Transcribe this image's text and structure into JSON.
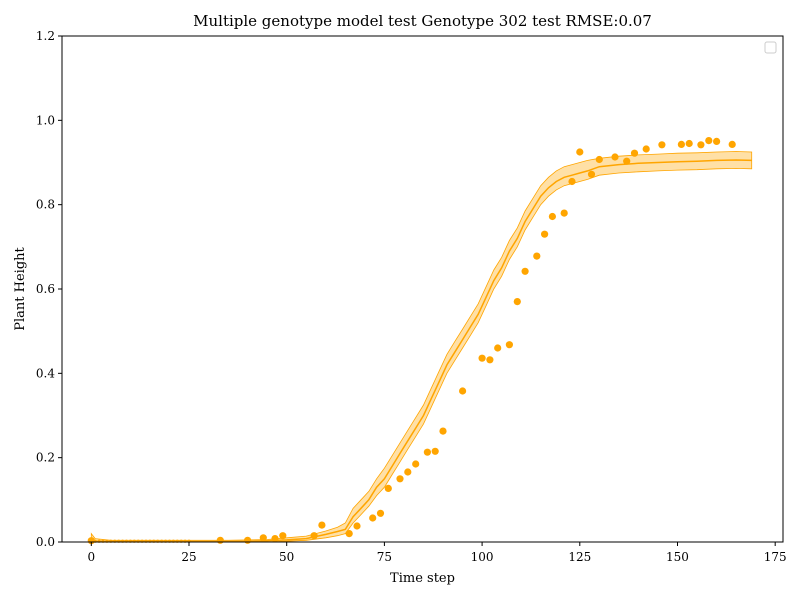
{
  "chart_data": {
    "type": "scatter",
    "title": "Multiple genotype model test Genotype 302 test RMSE:0.07",
    "xlabel": "Time step",
    "ylabel": "Plant Height",
    "xlim": [
      -7.5,
      177
    ],
    "ylim": [
      0,
      1.2
    ],
    "xticks": [
      0,
      25,
      50,
      75,
      100,
      125,
      150,
      175
    ],
    "yticks": [
      0.0,
      0.2,
      0.4,
      0.6,
      0.8,
      1.0,
      1.2
    ],
    "xtick_labels": [
      "0",
      "25",
      "50",
      "75",
      "100",
      "125",
      "150",
      "175"
    ],
    "ytick_labels": [
      "0.0",
      "0.2",
      "0.4",
      "0.6",
      "0.8",
      "1.0",
      "1.2"
    ],
    "grid": false,
    "legend": "top-right",
    "color": "#FFA500",
    "band_color": "#FFA500",
    "series": [
      {
        "type": "line-with-band",
        "x": [
          0,
          1,
          5,
          10,
          15,
          20,
          25,
          30,
          35,
          40,
          45,
          50,
          55,
          60,
          63,
          65,
          67,
          69,
          71,
          73,
          75,
          77,
          79,
          81,
          83,
          85,
          87,
          89,
          91,
          93,
          95,
          97,
          99,
          101,
          103,
          105,
          107,
          109,
          111,
          113,
          115,
          117,
          119,
          121,
          123,
          125,
          127,
          130,
          135,
          140,
          145,
          150,
          155,
          160,
          165,
          169
        ],
        "y": [
          0.003,
          0.002,
          0.001,
          0.001,
          0.001,
          0.001,
          0.001,
          0.001,
          0.001,
          0.002,
          0.003,
          0.005,
          0.008,
          0.018,
          0.025,
          0.03,
          0.06,
          0.08,
          0.1,
          0.13,
          0.15,
          0.18,
          0.21,
          0.24,
          0.27,
          0.3,
          0.34,
          0.38,
          0.42,
          0.45,
          0.48,
          0.51,
          0.54,
          0.58,
          0.62,
          0.65,
          0.69,
          0.72,
          0.76,
          0.79,
          0.82,
          0.84,
          0.855,
          0.865,
          0.87,
          0.875,
          0.88,
          0.89,
          0.895,
          0.898,
          0.9,
          0.902,
          0.903,
          0.905,
          0.906,
          0.905
        ],
        "lower": [
          0.0,
          0.0,
          0.0,
          0.0,
          0.0,
          0.0,
          0.0,
          0.0,
          0.0,
          0.0,
          0.0,
          0.002,
          0.004,
          0.01,
          0.015,
          0.02,
          0.045,
          0.065,
          0.085,
          0.11,
          0.13,
          0.16,
          0.19,
          0.22,
          0.25,
          0.28,
          0.32,
          0.36,
          0.4,
          0.43,
          0.46,
          0.49,
          0.52,
          0.56,
          0.6,
          0.63,
          0.67,
          0.7,
          0.74,
          0.77,
          0.8,
          0.82,
          0.835,
          0.845,
          0.85,
          0.855,
          0.86,
          0.87,
          0.875,
          0.878,
          0.88,
          0.882,
          0.883,
          0.885,
          0.886,
          0.885
        ],
        "upper": [
          0.02,
          0.008,
          0.004,
          0.004,
          0.004,
          0.004,
          0.004,
          0.004,
          0.004,
          0.005,
          0.006,
          0.01,
          0.014,
          0.026,
          0.035,
          0.045,
          0.08,
          0.1,
          0.12,
          0.15,
          0.175,
          0.205,
          0.235,
          0.265,
          0.295,
          0.325,
          0.365,
          0.405,
          0.445,
          0.475,
          0.505,
          0.535,
          0.565,
          0.605,
          0.645,
          0.675,
          0.715,
          0.745,
          0.785,
          0.815,
          0.845,
          0.865,
          0.88,
          0.89,
          0.895,
          0.9,
          0.905,
          0.91,
          0.915,
          0.918,
          0.92,
          0.922,
          0.923,
          0.925,
          0.926,
          0.925
        ]
      },
      {
        "type": "scatter",
        "x": [
          0,
          33,
          40,
          44,
          47,
          49,
          57,
          59,
          66,
          68,
          72,
          74,
          76,
          79,
          81,
          83,
          86,
          88,
          90,
          95,
          100,
          102,
          104,
          107,
          109,
          111,
          114,
          116,
          118,
          121,
          123,
          125,
          128,
          130,
          134,
          137,
          139,
          142,
          146,
          151,
          153,
          156,
          158,
          160,
          164
        ],
        "y": [
          0.003,
          0.004,
          0.004,
          0.01,
          0.008,
          0.015,
          0.015,
          0.04,
          0.02,
          0.038,
          0.057,
          0.068,
          0.127,
          0.15,
          0.166,
          0.185,
          0.213,
          0.215,
          0.263,
          0.358,
          0.436,
          0.432,
          0.46,
          0.468,
          0.57,
          0.642,
          0.678,
          0.73,
          0.772,
          0.78,
          0.855,
          0.925,
          0.872,
          0.907,
          0.913,
          0.903,
          0.922,
          0.932,
          0.942,
          0.943,
          0.945,
          0.942,
          0.952,
          0.95,
          0.943
        ]
      }
    ]
  }
}
